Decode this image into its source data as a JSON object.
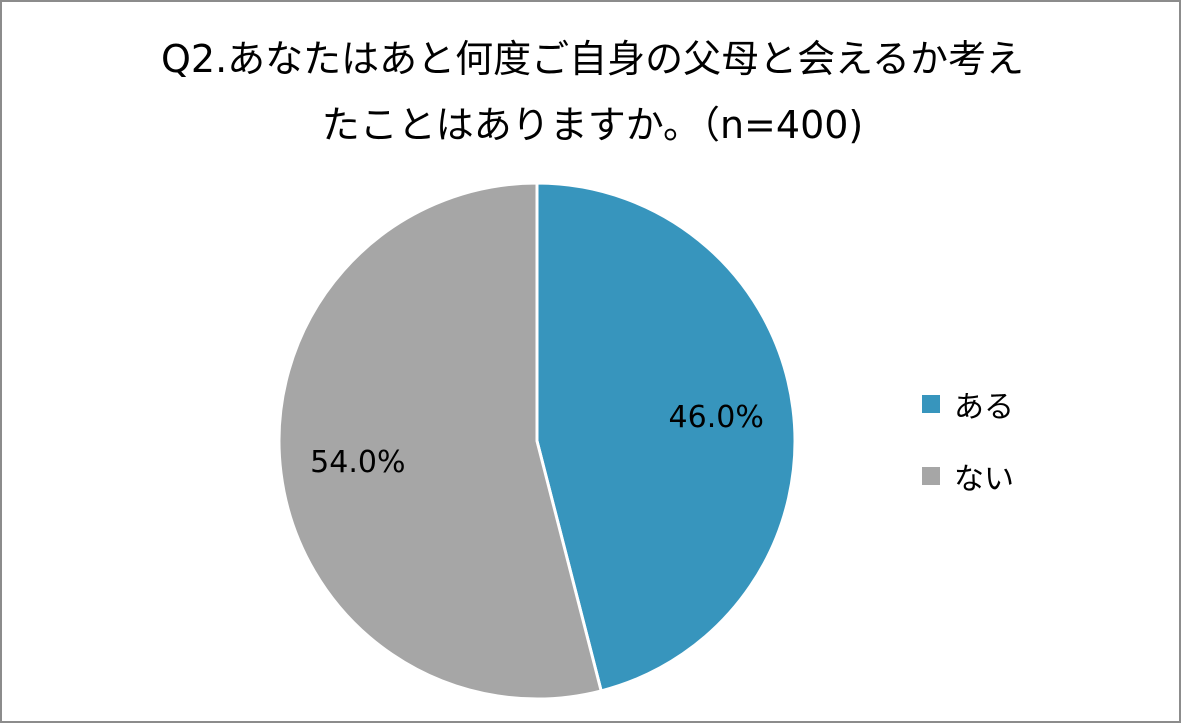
{
  "chart_data": {
    "type": "pie",
    "title_lines": [
      "Q2.あなたはあと何度ご自身の父母と会えるか考え",
      "たことはありますか。（n=400)"
    ],
    "slices": [
      {
        "label": "ある",
        "value": 46.0,
        "value_label": "46.0%",
        "color": "#3795BD"
      },
      {
        "label": "ない",
        "value": 54.0,
        "value_label": "54.0%",
        "color": "#A6A6A6"
      }
    ],
    "legend_position": "right"
  }
}
